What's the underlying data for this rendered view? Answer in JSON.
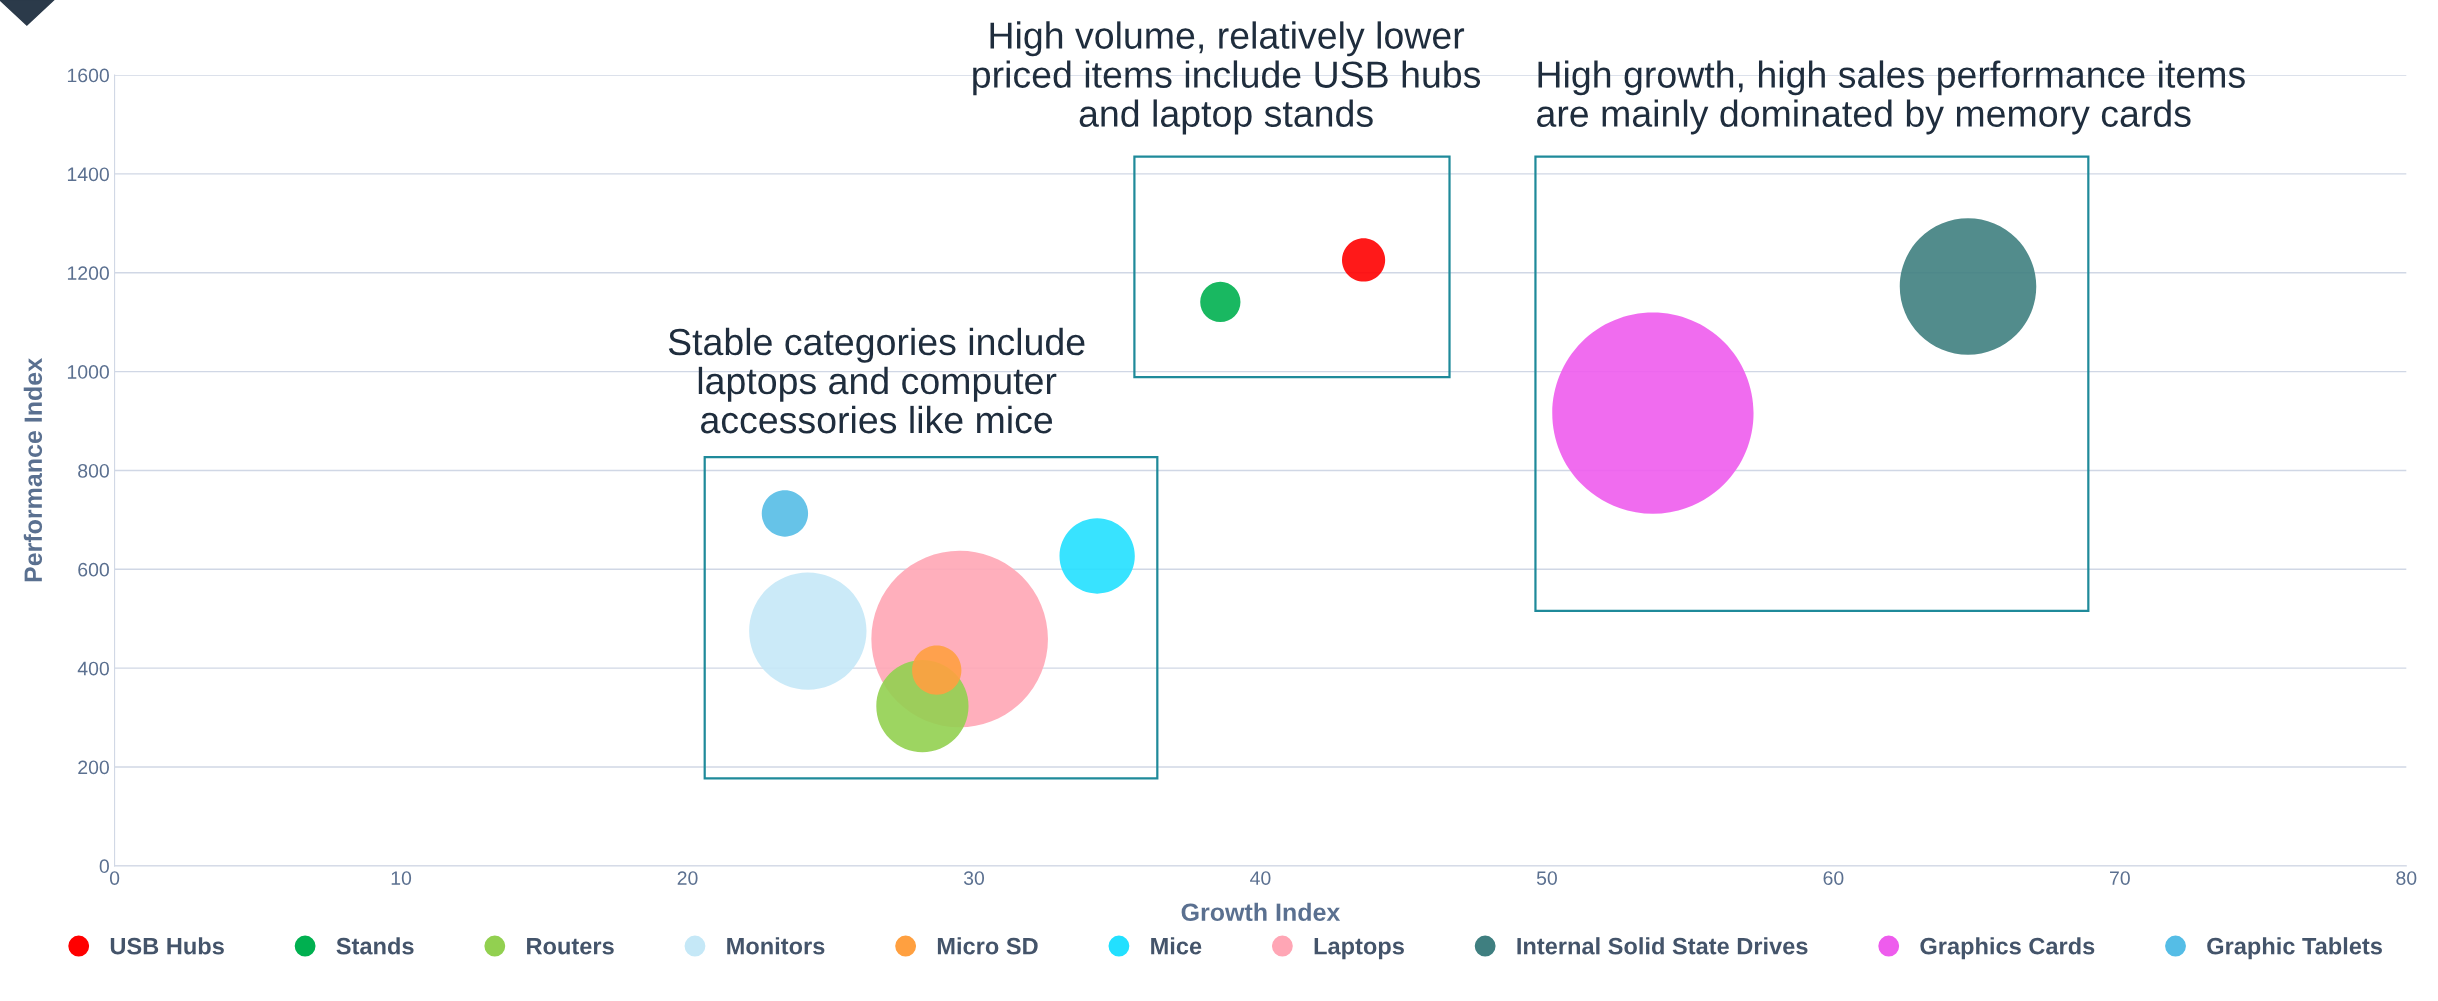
{
  "chart_data": {
    "type": "bubble",
    "xlabel": "Growth Index",
    "ylabel": "Performance Index",
    "xlim": [
      0,
      80
    ],
    "xticks": [
      0,
      10,
      20,
      30,
      40,
      50,
      60,
      70,
      80
    ],
    "ylim": [
      0,
      1600
    ],
    "yticks": [
      0,
      200,
      400,
      600,
      800,
      1000,
      1200,
      1400,
      1600
    ],
    "grid": "y",
    "legend": "bottom",
    "series": [
      {
        "name": "USB Hubs",
        "color": "#ff0000",
        "x": [
          43.6
        ],
        "values": [
          1226
        ],
        "sizes": [
          0.046
        ]
      },
      {
        "name": "Stands",
        "color": "#00b050",
        "x": [
          38.6
        ],
        "values": [
          1141
        ],
        "sizes": [
          0.04
        ]
      },
      {
        "name": "Routers",
        "color": "#92d050",
        "x": [
          28.2
        ],
        "values": [
          323
        ],
        "sizes": [
          0.21
        ]
      },
      {
        "name": "Monitors",
        "color": "#c5e8f7",
        "x": [
          24.2
        ],
        "values": [
          475
        ],
        "sizes": [
          0.34
        ]
      },
      {
        "name": "Micro SD",
        "color": "#ffa040",
        "x": [
          28.7
        ],
        "values": [
          396
        ],
        "sizes": [
          0.06
        ]
      },
      {
        "name": "Mice",
        "color": "#22e0ff",
        "x": [
          34.3
        ],
        "values": [
          627
        ],
        "sizes": [
          0.14
        ]
      },
      {
        "name": "Laptops",
        "color": "#ffa6b5",
        "x": [
          29.5
        ],
        "values": [
          459
        ],
        "sizes": [
          0.77
        ]
      },
      {
        "name": "Internal Solid State Drives",
        "color": "#3f7f80",
        "x": [
          64.7
        ],
        "values": [
          1172
        ],
        "sizes": [
          0.46
        ]
      },
      {
        "name": "Graphics Cards",
        "color": "#ee5ced",
        "x": [
          53.7
        ],
        "values": [
          916
        ],
        "sizes": [
          1
        ]
      },
      {
        "name": "Graphic Tablets",
        "color": "#55bde6",
        "x": [
          23.4
        ],
        "values": [
          713
        ],
        "sizes": [
          0.053
        ]
      }
    ],
    "annotations": [
      "Stable categories include\nlaptops and computer\naccessories like mice",
      "High volume, relatively lower\npriced items include USB hubs\nand laptop stands",
      "High growth, high sales performance items\nare mainly dominated by memory cards"
    ]
  }
}
